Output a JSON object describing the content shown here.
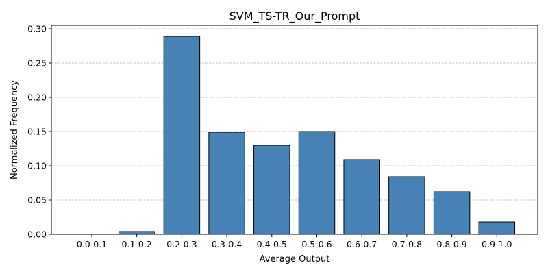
{
  "chart_data": {
    "type": "bar",
    "title": "SVM_TS-TR_Our_Prompt",
    "xlabel": "Average Output",
    "ylabel": "Normalized Frequency",
    "categories": [
      "0.0-0.1",
      "0.1-0.2",
      "0.2-0.3",
      "0.3-0.4",
      "0.4-0.5",
      "0.5-0.6",
      "0.6-0.7",
      "0.7-0.8",
      "0.8-0.9",
      "0.9-1.0"
    ],
    "values": [
      0.0005,
      0.004,
      0.289,
      0.149,
      0.13,
      0.15,
      0.109,
      0.084,
      0.062,
      0.018
    ],
    "ylim": [
      0,
      0.305
    ],
    "yticks": [
      0.0,
      0.05,
      0.1,
      0.15,
      0.2,
      0.25,
      0.3
    ],
    "ytick_labels": [
      "0.00",
      "0.05",
      "0.10",
      "0.15",
      "0.20",
      "0.25",
      "0.30"
    ],
    "grid": "y-dashed",
    "bar_color": "#4682b4",
    "edge_color": "#000000"
  }
}
